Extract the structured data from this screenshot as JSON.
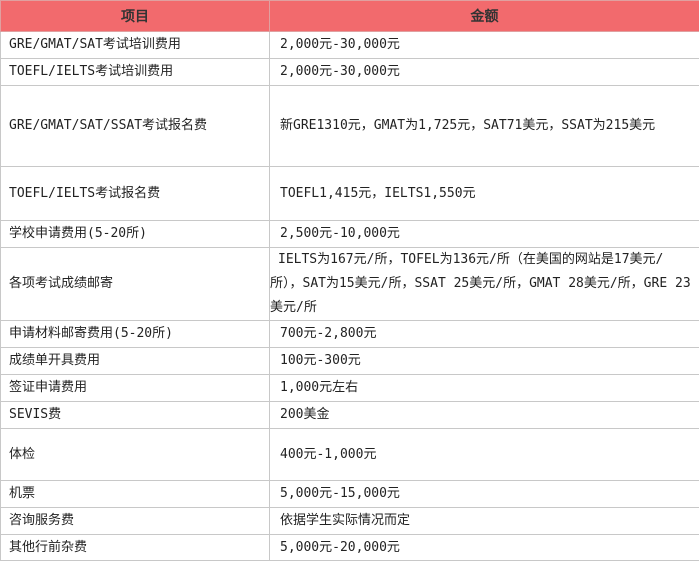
{
  "table": {
    "header": [
      "项目",
      "金额"
    ],
    "rows": [
      [
        "GRE/GMAT/SAT考试培训费用",
        "2,000元-30,000元"
      ],
      [
        "TOEFL/IELTS考试培训费用",
        "2,000元-30,000元"
      ],
      [
        "GRE/GMAT/SAT/SSAT考试报名费",
        "新GRE1310元，GMAT为1,725元，SAT71美元，SSAT为215美元"
      ],
      [
        "TOEFL/IELTS考试报名费",
        "TOEFL1,415元，IELTS1,550元"
      ],
      [
        "学校申请费用(5-20所)",
        "2,500元-10,000元"
      ],
      [
        "各项考试成绩邮寄",
        "IELTS为167元/所，TOFEL为136元/所（在美国的网站是17美元/所），SAT为15美元/所，SSAT 25美元/所，GMAT 28美元/所，GRE 23美元/所"
      ],
      [
        "申请材料邮寄费用(5-20所)",
        "700元-2,800元"
      ],
      [
        "成绩单开具费用",
        "100元-300元"
      ],
      [
        "签证申请费用",
        "1,000元左右"
      ],
      [
        "SEVIS费",
        "200美金"
      ],
      [
        "体检",
        "400元-1,000元"
      ],
      [
        "机票",
        "5,000元-15,000元"
      ],
      [
        "咨询服务费",
        "依据学生实际情况而定"
      ],
      [
        "其他行前杂费",
        "5,000元-20,000元"
      ]
    ]
  }
}
